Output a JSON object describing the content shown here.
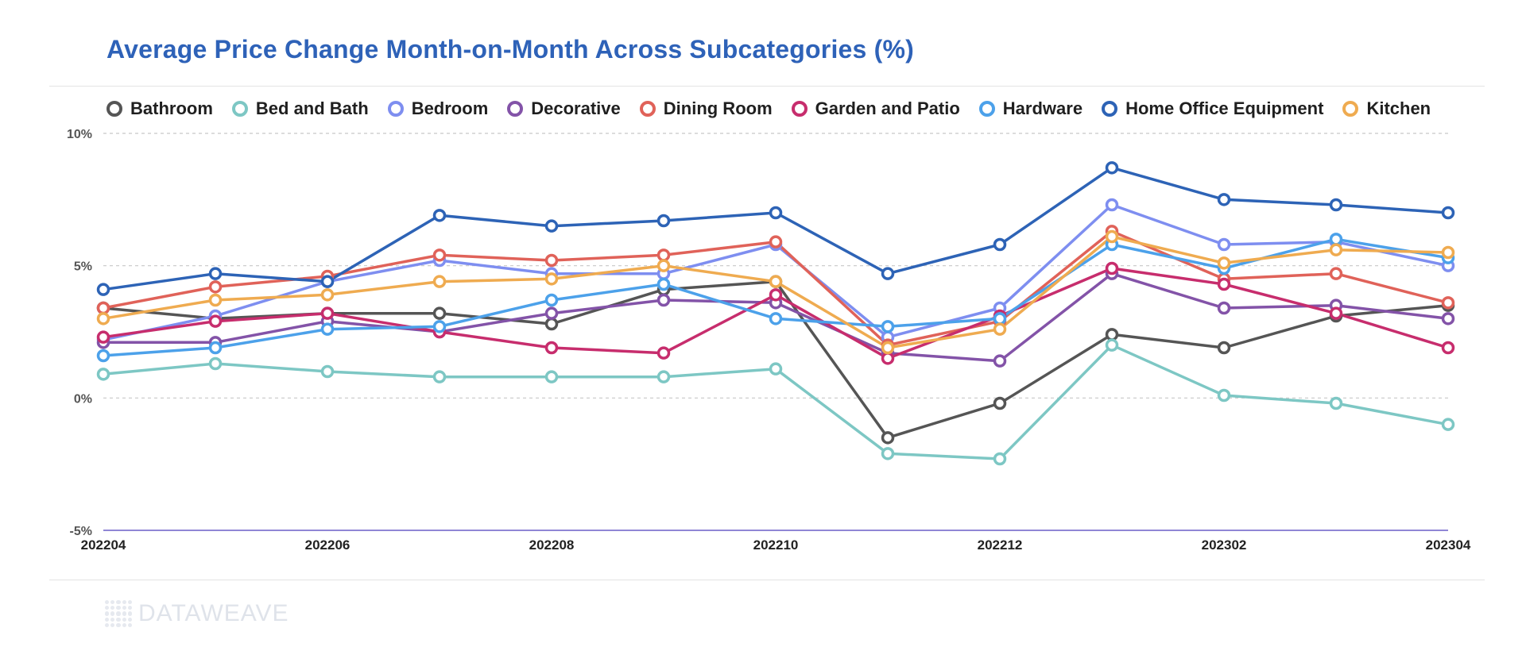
{
  "title": "Average Price Change Month-on-Month Across Subcategories (%)",
  "watermark": "DATAWEAVE",
  "chart_data": {
    "type": "line",
    "title": "Average Price Change Month-on-Month Across Subcategories (%)",
    "xlabel": "",
    "ylabel": "",
    "x": [
      "202204",
      "202205",
      "202206",
      "202207",
      "202208",
      "202209",
      "202210",
      "202211",
      "202212",
      "202301",
      "202302",
      "202303",
      "202304"
    ],
    "x_tick_labels": [
      "202204",
      "202206",
      "202208",
      "202210",
      "202212",
      "202302",
      "202304"
    ],
    "y_ticks": [
      10,
      5,
      0,
      -5
    ],
    "y_tick_labels": [
      "10%",
      "5%",
      "0%",
      "-5%"
    ],
    "ylim": [
      -5,
      10
    ],
    "grid": "horizontal dashed",
    "legend": "top",
    "series": [
      {
        "name": "Bathroom",
        "color": "#555555",
        "values": [
          3.4,
          3.0,
          3.2,
          3.2,
          2.8,
          4.1,
          4.4,
          -1.5,
          -0.2,
          2.4,
          1.9,
          3.1,
          3.5
        ]
      },
      {
        "name": "Bed and Bath",
        "color": "#7dc7c4",
        "values": [
          0.9,
          1.3,
          1.0,
          0.8,
          0.8,
          0.8,
          1.1,
          -2.1,
          -2.3,
          2.0,
          0.1,
          -0.2,
          -1.0
        ]
      },
      {
        "name": "Bedroom",
        "color": "#7e8ef0",
        "values": [
          2.2,
          3.1,
          4.4,
          5.2,
          4.7,
          4.7,
          5.8,
          2.3,
          3.4,
          7.3,
          5.8,
          5.9,
          5.0
        ]
      },
      {
        "name": "Decorative",
        "color": "#8353a8",
        "values": [
          2.1,
          2.1,
          2.9,
          2.5,
          3.2,
          3.7,
          3.6,
          1.7,
          1.4,
          4.7,
          3.4,
          3.5,
          3.0
        ]
      },
      {
        "name": "Dining Room",
        "color": "#e06259",
        "values": [
          3.4,
          4.2,
          4.6,
          5.4,
          5.2,
          5.4,
          5.9,
          2.0,
          2.9,
          6.3,
          4.5,
          4.7,
          3.6
        ]
      },
      {
        "name": "Garden and Patio",
        "color": "#c72d6d",
        "values": [
          2.3,
          2.9,
          3.2,
          2.5,
          1.9,
          1.7,
          3.9,
          1.5,
          3.1,
          4.9,
          4.3,
          3.2,
          1.9
        ]
      },
      {
        "name": "Hardware",
        "color": "#4ca1ea",
        "values": [
          1.6,
          1.9,
          2.6,
          2.7,
          3.7,
          4.3,
          3.0,
          2.7,
          3.0,
          5.8,
          4.9,
          6.0,
          5.3
        ]
      },
      {
        "name": "Home Office Equipment",
        "color": "#2d63b6",
        "values": [
          4.1,
          4.7,
          4.4,
          6.9,
          6.5,
          6.7,
          7.0,
          4.7,
          5.8,
          8.7,
          7.5,
          7.3,
          7.0
        ]
      },
      {
        "name": "Kitchen",
        "color": "#efab50",
        "values": [
          3.0,
          3.7,
          3.9,
          4.4,
          4.5,
          5.0,
          4.4,
          1.9,
          2.6,
          6.1,
          5.1,
          5.6,
          5.5
        ]
      }
    ]
  }
}
